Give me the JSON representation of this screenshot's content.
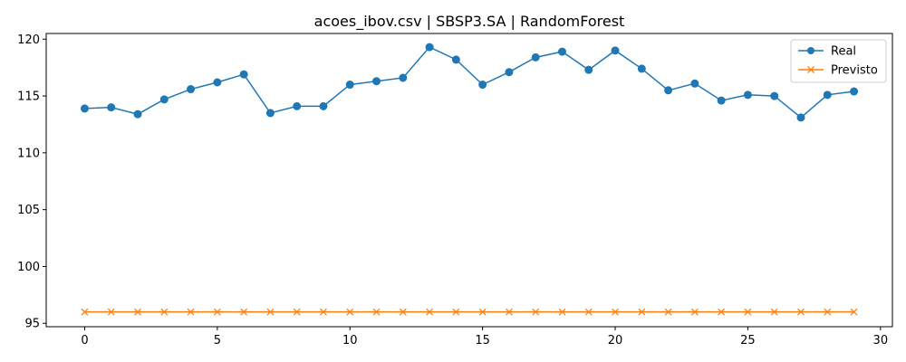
{
  "chart_data": {
    "type": "line",
    "title": "acoes_ibov.csv | SBSP3.SA | RandomForest",
    "xlabel": "",
    "ylabel": "",
    "xlim": [
      -1.45,
      30.45
    ],
    "ylim": [
      94.7,
      120.5
    ],
    "x_ticks": [
      0,
      5,
      10,
      15,
      20,
      25,
      30
    ],
    "y_ticks": [
      95,
      100,
      105,
      110,
      115,
      120
    ],
    "grid": false,
    "legend_position": "top-right",
    "x": [
      0,
      1,
      2,
      3,
      4,
      5,
      6,
      7,
      8,
      9,
      10,
      11,
      12,
      13,
      14,
      15,
      16,
      17,
      18,
      19,
      20,
      21,
      22,
      23,
      24,
      25,
      26,
      27,
      28,
      29
    ],
    "series": [
      {
        "name": "Real",
        "color": "#1f77b4",
        "marker": "circle",
        "values": [
          113.9,
          114.0,
          113.4,
          114.7,
          115.6,
          116.2,
          116.9,
          113.5,
          114.1,
          114.1,
          116.0,
          116.3,
          116.6,
          119.3,
          118.2,
          116.0,
          117.1,
          118.4,
          118.9,
          117.3,
          119.0,
          117.4,
          115.5,
          116.1,
          114.6,
          115.1,
          115.0,
          113.1,
          115.1,
          115.4
        ]
      },
      {
        "name": "Previsto",
        "color": "#ff7f0e",
        "marker": "x",
        "values": [
          96.0,
          96.0,
          96.0,
          96.0,
          96.0,
          96.0,
          96.0,
          96.0,
          96.0,
          96.0,
          96.0,
          96.0,
          96.0,
          96.0,
          96.0,
          96.0,
          96.0,
          96.0,
          96.0,
          96.0,
          96.0,
          96.0,
          96.0,
          96.0,
          96.0,
          96.0,
          96.0,
          96.0,
          96.0,
          96.0
        ]
      }
    ]
  }
}
